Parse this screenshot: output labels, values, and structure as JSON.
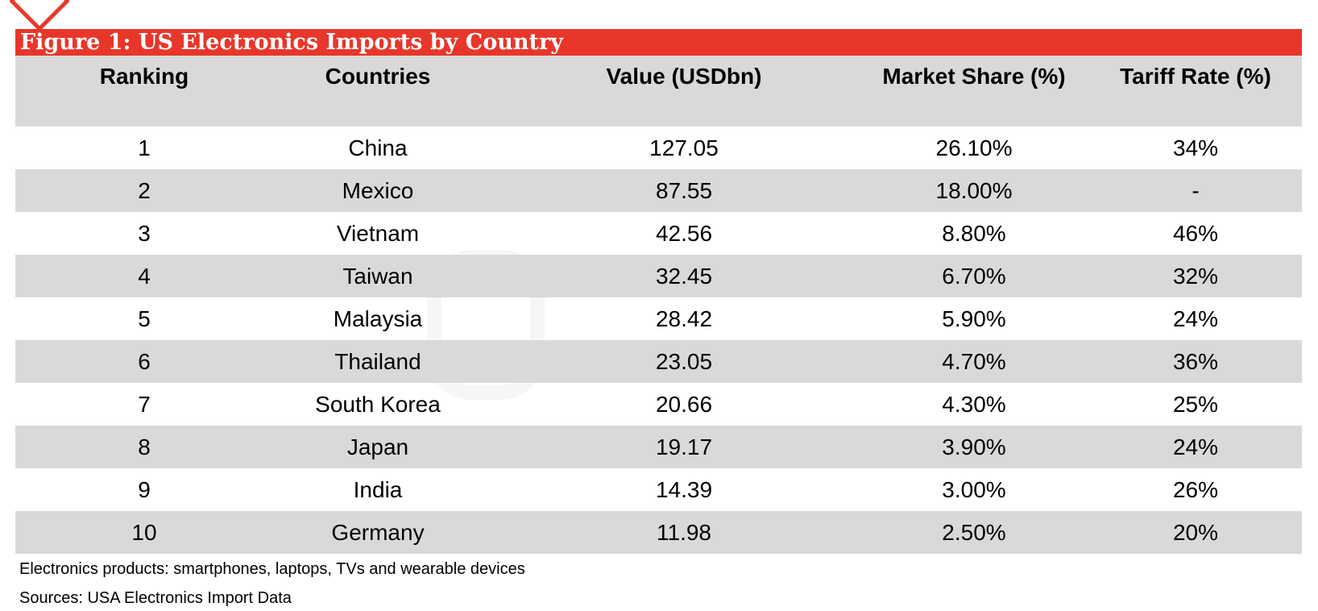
{
  "title": "Figure 1: US Electronics Imports by Country",
  "colors": {
    "title_bar": "#e8362a",
    "row_shade": "#d9d9d9"
  },
  "icons": {
    "logo": "brand-logo-icon"
  },
  "chart_data": {
    "type": "table",
    "title": "Figure 1: US Electronics Imports by Country",
    "columns": [
      "Ranking",
      "Countries",
      "Value (USDbn)",
      "Market Share (%)",
      "Tariff Rate (%)"
    ],
    "rows": [
      [
        "1",
        "China",
        "127.05",
        "26.10%",
        "34%"
      ],
      [
        "2",
        "Mexico",
        "87.55",
        "18.00%",
        "-"
      ],
      [
        "3",
        "Vietnam",
        "42.56",
        "8.80%",
        "46%"
      ],
      [
        "4",
        "Taiwan",
        "32.45",
        "6.70%",
        "32%"
      ],
      [
        "5",
        "Malaysia",
        "28.42",
        "5.90%",
        "24%"
      ],
      [
        "6",
        "Thailand",
        "23.05",
        "4.70%",
        "36%"
      ],
      [
        "7",
        "South Korea",
        "20.66",
        "4.30%",
        "25%"
      ],
      [
        "8",
        "Japan",
        "19.17",
        "3.90%",
        "24%"
      ],
      [
        "9",
        "India",
        "14.39",
        "3.00%",
        "26%"
      ],
      [
        "10",
        "Germany",
        "11.98",
        "2.50%",
        "20%"
      ]
    ]
  },
  "footnotes": {
    "note": "Electronics products: smartphones, laptops, TVs and wearable devices",
    "sources": "Sources: USA Electronics Import Data"
  }
}
